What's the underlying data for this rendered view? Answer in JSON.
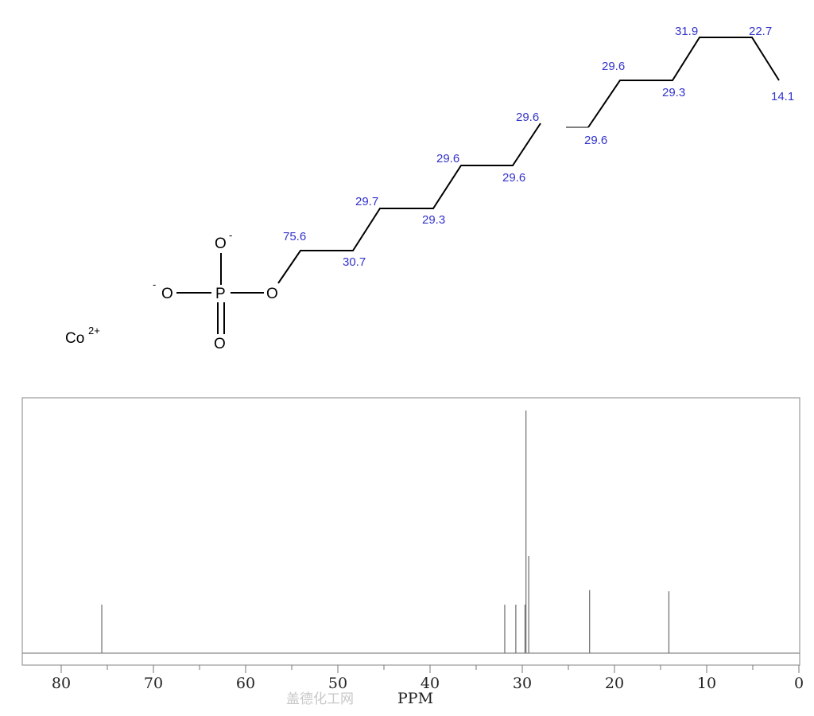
{
  "molecule": {
    "counter_ion": "Co",
    "counter_ion_charge": "2+",
    "atoms": {
      "p": "P",
      "o_top": "O",
      "o_left": "O",
      "o_bottom": "O",
      "o_ester": "O",
      "minus": "-"
    },
    "shift_labels": [
      "75.6",
      "30.7",
      "29.7",
      "29.3",
      "29.6",
      "29.6",
      "29.6",
      "29.6",
      "29.6",
      "29.3",
      "31.9",
      "22.7",
      "14.1"
    ]
  },
  "watermark": "盖德化工网",
  "chart_data": {
    "type": "bar",
    "title": "",
    "xlabel": "PPM",
    "ylabel": "",
    "xlim": [
      84,
      0
    ],
    "x_ticks": [
      80,
      70,
      60,
      50,
      40,
      30,
      20,
      10,
      0
    ],
    "tick_labels": [
      "80",
      "70",
      "60",
      "50",
      "40",
      "30",
      "20",
      "10",
      "0"
    ],
    "peaks": [
      {
        "ppm": 75.6,
        "intensity": 20
      },
      {
        "ppm": 31.9,
        "intensity": 20
      },
      {
        "ppm": 30.7,
        "intensity": 20
      },
      {
        "ppm": 29.7,
        "intensity": 20
      },
      {
        "ppm": 29.6,
        "intensity": 100
      },
      {
        "ppm": 29.3,
        "intensity": 40
      },
      {
        "ppm": 22.7,
        "intensity": 26
      },
      {
        "ppm": 14.1,
        "intensity": 25.5
      }
    ],
    "grid": false,
    "colors": {
      "peak": "#777777",
      "frame": "#999999"
    }
  }
}
